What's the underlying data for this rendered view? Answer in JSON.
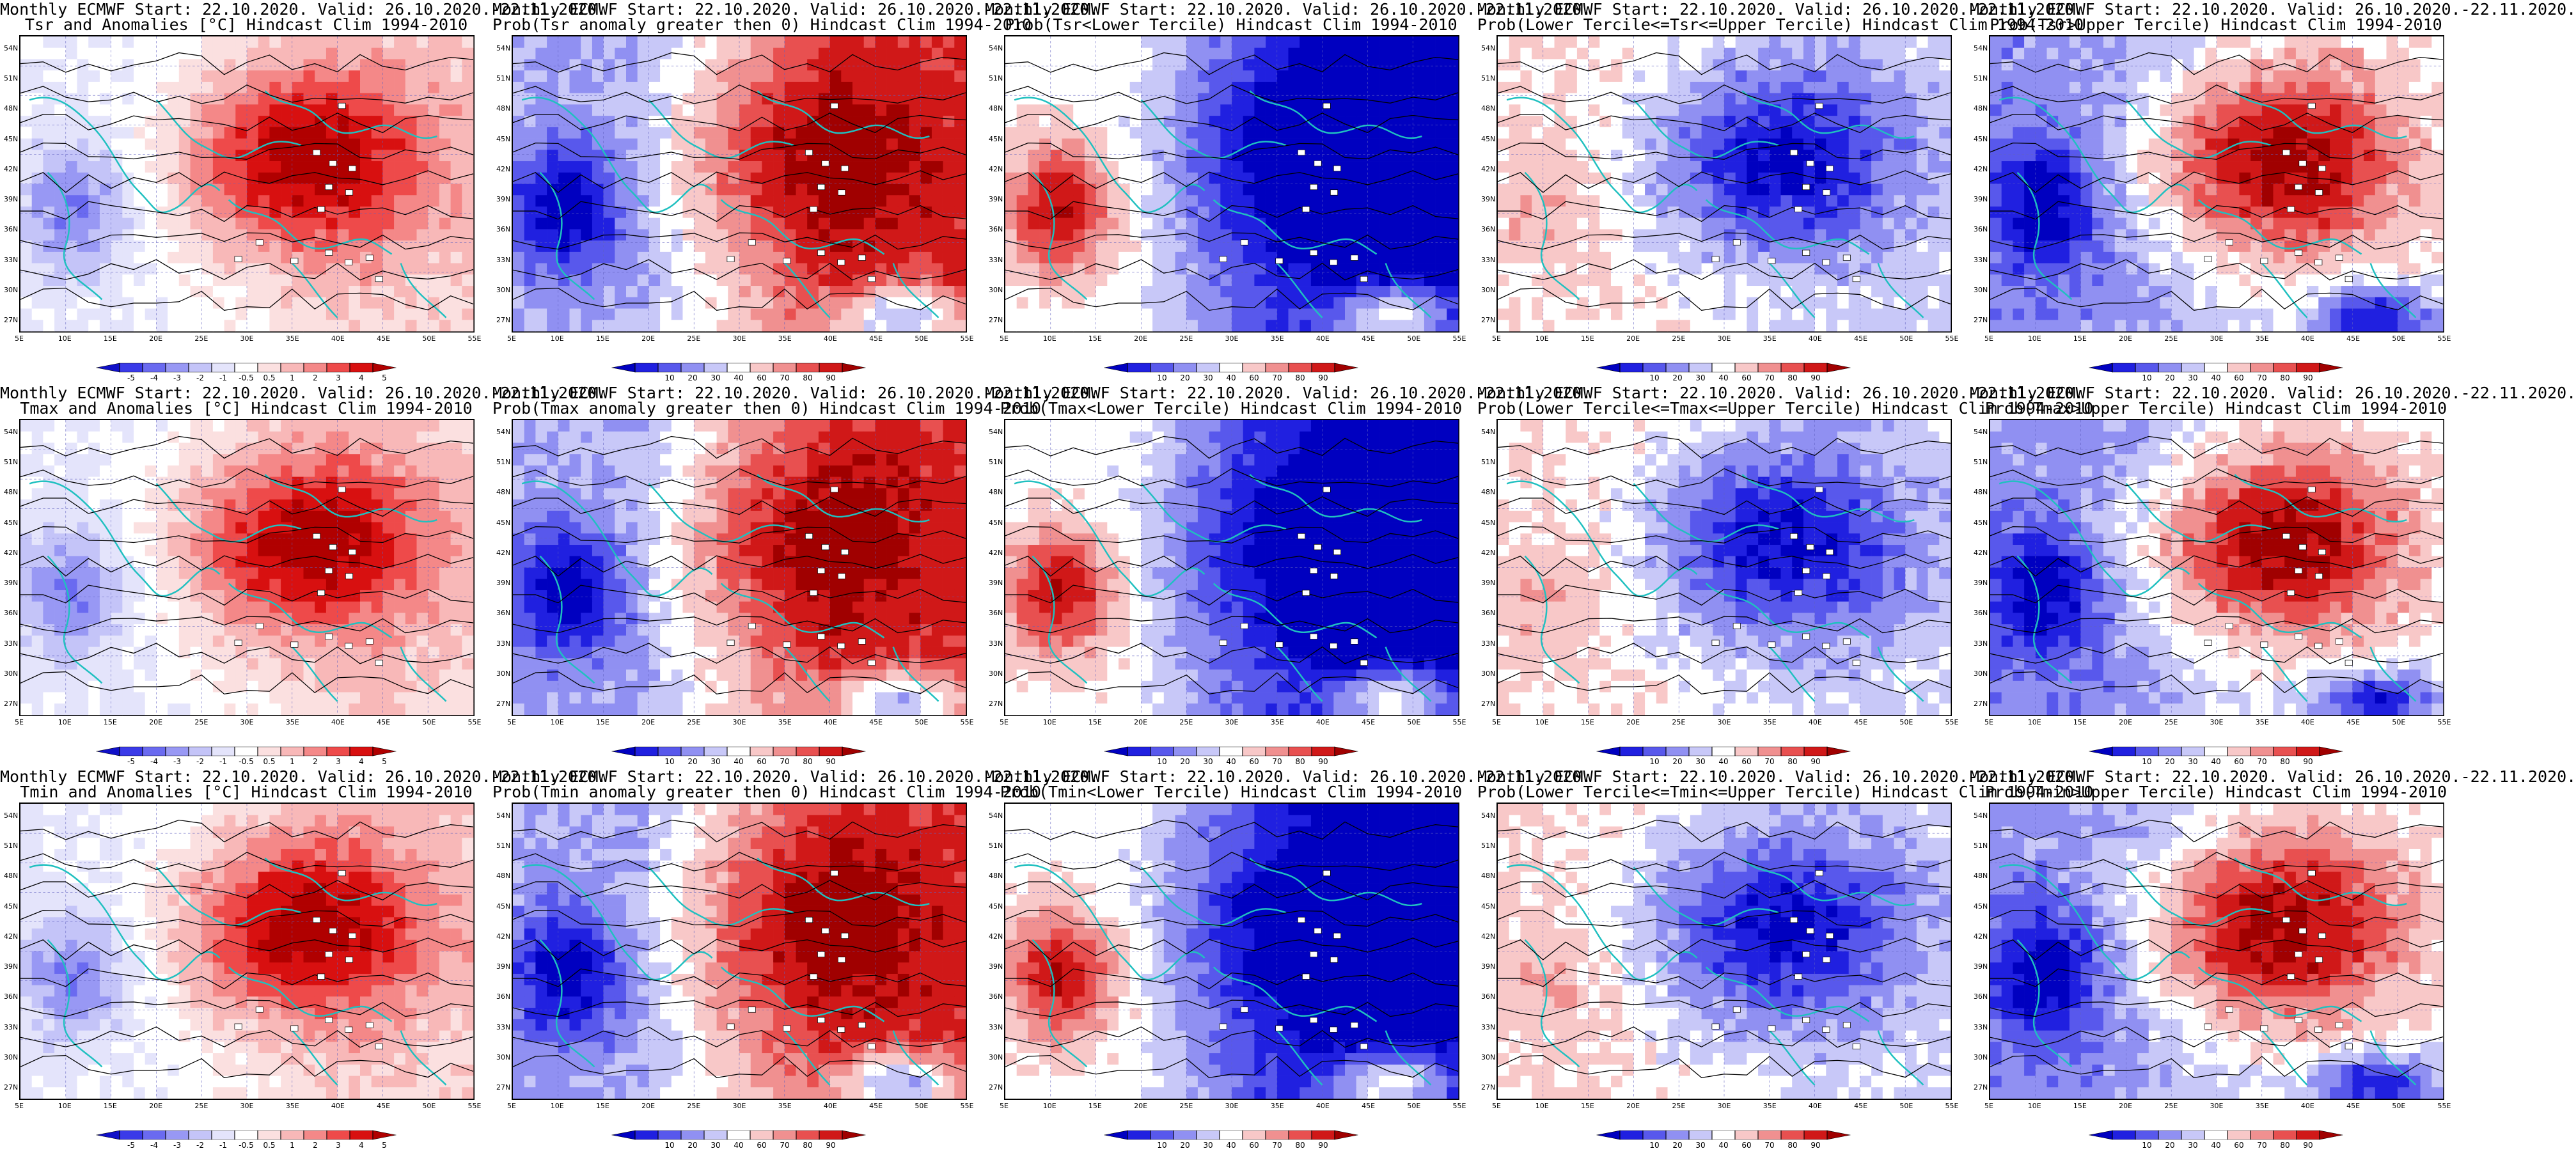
{
  "panels": [
    {
      "title1": "Monthly ECMWF Start: 22.10.2020. Valid: 26.10.2020.-22.11.2020.",
      "title2": "Tsr and Anomalies [°C] Hindcast Clim 1994-2010",
      "kind": "anom",
      "palette": "anom",
      "labels": [
        "-5",
        "-4",
        "-3",
        "-2",
        "-1",
        "-0.5",
        "0.5",
        "1",
        "2",
        "3",
        "4",
        "5"
      ]
    },
    {
      "title1": "Monthly ECMWF Start: 22.10.2020. Valid: 26.10.2020.-22.11.2020.",
      "title2": "Prob(Tsr anomaly greater then 0) Hindcast Clim 1994-2010",
      "kind": "pos",
      "palette": "prob",
      "labels": [
        "10",
        "20",
        "30",
        "40",
        "60",
        "70",
        "80",
        "90"
      ]
    },
    {
      "title1": "Monthly ECMWF Start: 22.10.2020. Valid: 26.10.2020.-22.11.2020.",
      "title2": "Prob(Tsr<Lower Tercile) Hindcast Clim 1994-2010",
      "kind": "low",
      "palette": "prob",
      "labels": [
        "10",
        "20",
        "30",
        "40",
        "60",
        "70",
        "80",
        "90"
      ]
    },
    {
      "title1": "Monthly ECMWF Start: 22.10.2020. Valid: 26.10.2020.-22.11.2020.",
      "title2": "Prob(Lower Tercile<=Tsr<=Upper Tercile) Hindcast Clim 1994-2010",
      "kind": "mid",
      "palette": "prob",
      "labels": [
        "10",
        "20",
        "30",
        "40",
        "60",
        "70",
        "80",
        "90"
      ]
    },
    {
      "title1": "Monthly ECMWF Start: 22.10.2020. Valid: 26.10.2020.-22.11.2020.",
      "title2": "Prob(Tsr>Upper Tercile) Hindcast Clim 1994-2010",
      "kind": "up",
      "palette": "prob",
      "labels": [
        "10",
        "20",
        "30",
        "40",
        "60",
        "70",
        "80",
        "90"
      ]
    },
    {
      "title1": "Monthly ECMWF Start: 22.10.2020. Valid: 26.10.2020.-22.11.2020.",
      "title2": "Tmax and Anomalies [°C] Hindcast Clim 1994-2010",
      "kind": "anom",
      "palette": "anom",
      "labels": [
        "-5",
        "-4",
        "-3",
        "-2",
        "-1",
        "-0.5",
        "0.5",
        "1",
        "2",
        "3",
        "4",
        "5"
      ]
    },
    {
      "title1": "Monthly ECMWF Start: 22.10.2020. Valid: 26.10.2020.-22.11.2020.",
      "title2": "Prob(Tmax anomaly greater then 0) Hindcast Clim 1994-2010",
      "kind": "pos",
      "palette": "prob",
      "labels": [
        "10",
        "20",
        "30",
        "40",
        "60",
        "70",
        "80",
        "90"
      ]
    },
    {
      "title1": "Monthly ECMWF Start: 22.10.2020. Valid: 26.10.2020.-22.11.2020.",
      "title2": "Prob(Tmax<Lower Tercile) Hindcast Clim 1994-2010",
      "kind": "low",
      "palette": "prob",
      "labels": [
        "10",
        "20",
        "30",
        "40",
        "60",
        "70",
        "80",
        "90"
      ]
    },
    {
      "title1": "Monthly ECMWF Start: 22.10.2020. Valid: 26.10.2020.-22.11.2020.",
      "title2": "Prob(Lower Tercile<=Tmax<=Upper Tercile) Hindcast Clim 1994-2010",
      "kind": "mid",
      "palette": "prob",
      "labels": [
        "10",
        "20",
        "30",
        "40",
        "60",
        "70",
        "80",
        "90"
      ]
    },
    {
      "title1": "Monthly ECMWF Start: 22.10.2020. Valid: 26.10.2020.-22.11.2020.",
      "title2": "Prob(Tmax>Upper Tercile) Hindcast Clim 1994-2010",
      "kind": "up",
      "palette": "prob",
      "labels": [
        "10",
        "20",
        "30",
        "40",
        "60",
        "70",
        "80",
        "90"
      ]
    },
    {
      "title1": "Monthly ECMWF Start: 22.10.2020. Valid: 26.10.2020.-22.11.2020.",
      "title2": "Tmin and Anomalies [°C] Hindcast Clim 1994-2010",
      "kind": "anom",
      "palette": "anom",
      "labels": [
        "-5",
        "-4",
        "-3",
        "-2",
        "-1",
        "-0.5",
        "0.5",
        "1",
        "2",
        "3",
        "4",
        "5"
      ]
    },
    {
      "title1": "Monthly ECMWF Start: 22.10.2020. Valid: 26.10.2020.-22.11.2020.",
      "title2": "Prob(Tmin anomaly greater then 0) Hindcast Clim 1994-2010",
      "kind": "pos",
      "palette": "prob",
      "labels": [
        "10",
        "20",
        "30",
        "40",
        "60",
        "70",
        "80",
        "90"
      ]
    },
    {
      "title1": "Monthly ECMWF Start: 22.10.2020. Valid: 26.10.2020.-22.11.2020.",
      "title2": "Prob(Tmin<Lower Tercile) Hindcast Clim 1994-2010",
      "kind": "low",
      "palette": "prob",
      "labels": [
        "10",
        "20",
        "30",
        "40",
        "60",
        "70",
        "80",
        "90"
      ]
    },
    {
      "title1": "Monthly ECMWF Start: 22.10.2020. Valid: 26.10.2020.-22.11.2020.",
      "title2": "Prob(Lower Tercile<=Tmin<=Upper Tercile) Hindcast Clim 1994-2010",
      "kind": "mid",
      "palette": "prob",
      "labels": [
        "10",
        "20",
        "30",
        "40",
        "60",
        "70",
        "80",
        "90"
      ]
    },
    {
      "title1": "Monthly ECMWF Start: 22.10.2020. Valid: 26.10.2020.-22.11.2020.",
      "title2": "Prob(Tmin>Upper Tercile) Hindcast Clim 1994-2010",
      "kind": "up",
      "palette": "prob",
      "labels": [
        "10",
        "20",
        "30",
        "40",
        "60",
        "70",
        "80",
        "90"
      ]
    }
  ],
  "lat_labels": [
    "54N",
    "51N",
    "48N",
    "45N",
    "42N",
    "39N",
    "36N",
    "33N",
    "30N",
    "27N"
  ],
  "lon_labels": [
    "5E",
    "10E",
    "15E",
    "20E",
    "25E",
    "30E",
    "35E",
    "40E",
    "45E",
    "50E",
    "55E"
  ],
  "palettes": {
    "anom": [
      "#1010c8",
      "#3a3ae8",
      "#6a6af0",
      "#9898f4",
      "#c4c4f8",
      "#e4e4fb",
      "#ffffff",
      "#fbe0e0",
      "#f8b8b8",
      "#f48888",
      "#ee4a4a",
      "#d81010",
      "#b00000"
    ],
    "prob": [
      "#0000c0",
      "#2020e0",
      "#5858ec",
      "#9090f2",
      "#c8c8f8",
      "#ffffff",
      "#f8c8c8",
      "#f09090",
      "#e85050",
      "#d01818",
      "#a00000"
    ]
  },
  "colors": {
    "coast": "#20c0c0",
    "contour": "#000000",
    "grid": "#6060c0"
  }
}
